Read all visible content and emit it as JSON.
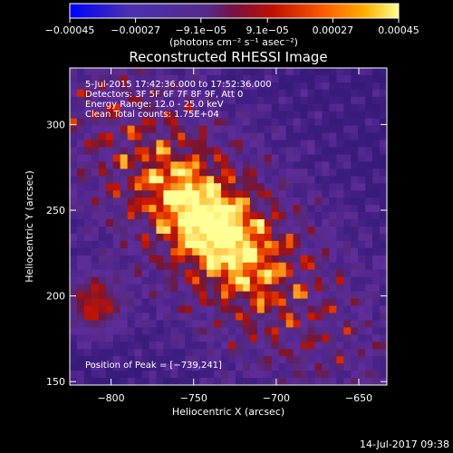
{
  "chart_data": {
    "type": "heatmap",
    "title": "Reconstructed RHESSI Image",
    "xlabel": "Heliocentric X (arcsec)",
    "ylabel": "Heliocentric Y (arcsec)",
    "xlim": [
      -825,
      -633
    ],
    "ylim": [
      148,
      333
    ],
    "xticks": [
      -800,
      -750,
      -700,
      -650
    ],
    "xtick_labels": [
      "−800",
      "−750",
      "−700",
      "−650"
    ],
    "yticks": [
      150,
      200,
      250,
      300
    ],
    "ytick_labels": [
      "150",
      "200",
      "250",
      "300"
    ],
    "colorbar": {
      "min": -0.00045,
      "max": 0.00045,
      "ticks": [
        -0.00045,
        -0.00027,
        -9.1e-05,
        9.1e-05,
        0.00027,
        0.00045
      ],
      "tick_labels": [
        "−0.00045",
        "−0.00027",
        "−9.1e−05",
        "9.1e−05",
        "0.00027",
        "0.00045"
      ],
      "units": "(photons cm⁻² s⁻¹ asec⁻²)",
      "colors": [
        "#0000ff",
        "#5a2da0",
        "#552a8a",
        "#a01818",
        "#e63000",
        "#ff8c00",
        "#ffff80"
      ]
    },
    "annotations": [
      "5-Jul-2015 17:42:36.000 to 17:52:36.000",
      "Detectors: 3F 5F 6F 7F 8F 9F, Att 0",
      "Energy Range: 12.0 - 25.0 keV",
      "Clean     Total counts: 1.75E+04"
    ],
    "peak_label": "Position of Peak = [−739,241]",
    "peak_position": [
      -739,
      241
    ]
  },
  "footer": {
    "timestamp": "14-Jul-2017 09:38"
  }
}
